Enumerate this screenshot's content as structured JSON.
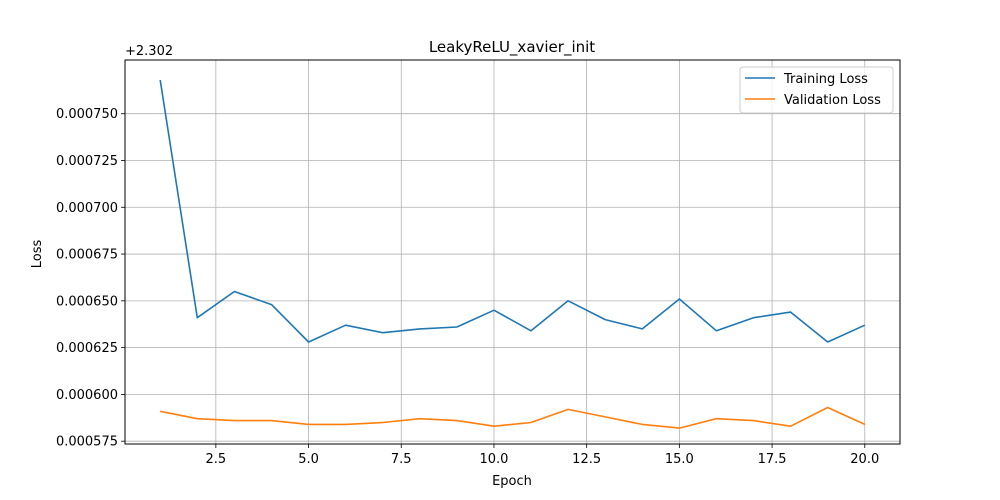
{
  "chart_data": {
    "type": "line",
    "title": "LeakyReLU_xavier_init",
    "xlabel": "Epoch",
    "ylabel": "Loss",
    "y_offset_label": "+2.302",
    "x_ticks": [
      2.5,
      5.0,
      7.5,
      10.0,
      12.5,
      15.0,
      17.5,
      20.0
    ],
    "x_tick_labels": [
      "2.5",
      "5.0",
      "7.5",
      "10.0",
      "12.5",
      "15.0",
      "17.5",
      "20.0"
    ],
    "y_ticks": [
      0.000575,
      0.0006,
      0.000625,
      0.00065,
      0.000675,
      0.0007,
      0.000725,
      0.00075
    ],
    "y_tick_labels": [
      "0.000575",
      "0.000600",
      "0.000625",
      "0.000650",
      "0.000675",
      "0.000700",
      "0.000725",
      "0.000750"
    ],
    "xlim": [
      0.05,
      20.95
    ],
    "ylim": [
      0.0005735,
      0.0007787
    ],
    "grid": true,
    "legend_position": "top-right",
    "x": [
      1,
      2,
      3,
      4,
      5,
      6,
      7,
      8,
      9,
      10,
      11,
      12,
      13,
      14,
      15,
      16,
      17,
      18,
      19,
      20
    ],
    "series": [
      {
        "name": "Training Loss",
        "color": "#1f77b4",
        "values": [
          0.000768,
          0.000641,
          0.000655,
          0.000648,
          0.000628,
          0.000637,
          0.000633,
          0.000635,
          0.000636,
          0.000645,
          0.000634,
          0.00065,
          0.00064,
          0.000635,
          0.000651,
          0.000634,
          0.000641,
          0.000644,
          0.000628,
          0.000637
        ]
      },
      {
        "name": "Validation Loss",
        "color": "#ff7f0e",
        "values": [
          0.000591,
          0.000587,
          0.000586,
          0.000586,
          0.000584,
          0.000584,
          0.000585,
          0.000587,
          0.000586,
          0.000583,
          0.000585,
          0.000592,
          0.000588,
          0.000584,
          0.000582,
          0.000587,
          0.000586,
          0.000583,
          0.000593,
          0.000584
        ]
      }
    ]
  }
}
